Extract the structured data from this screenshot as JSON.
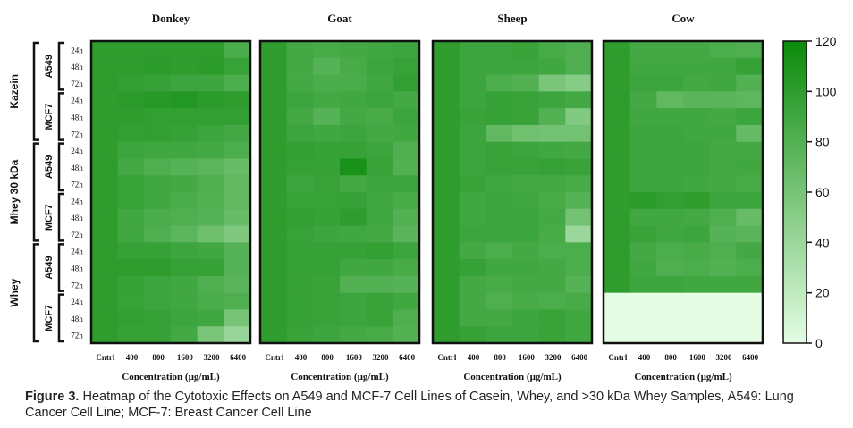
{
  "chart_data": {
    "type": "heatmap",
    "panels": [
      "Donkey",
      "Goat",
      "Sheep",
      "Cow"
    ],
    "columns": [
      "Cntrl",
      "400",
      "800",
      "1600",
      "3200",
      "6400"
    ],
    "xlabel": "Concentration (µg/mL)",
    "groups": [
      {
        "name": "Kazein",
        "cell_lines": [
          {
            "name": "A549",
            "times": [
              "24h",
              "48h",
              "72h"
            ]
          },
          {
            "name": "MCF7",
            "times": [
              "24h",
              "48h",
              "72h"
            ]
          }
        ]
      },
      {
        "name": "Mhey 30 kDa",
        "cell_lines": [
          {
            "name": "A549",
            "times": [
              "24h",
              "48h",
              "72h"
            ]
          },
          {
            "name": "MCF7",
            "times": [
              "24h",
              "48h",
              "72h"
            ]
          }
        ]
      },
      {
        "name": "Whey",
        "cell_lines": [
          {
            "name": "A549",
            "times": [
              "24h",
              "48h",
              "72h"
            ]
          },
          {
            "name": "MCF7",
            "times": [
              "24h",
              "48h",
              "72h"
            ]
          }
        ]
      }
    ],
    "colorbar": {
      "min": 0,
      "max": 120,
      "ticks": [
        0,
        20,
        40,
        60,
        80,
        100,
        120
      ],
      "low_color": "#e4fde4",
      "high_color": "#0a8a0a"
    },
    "values": {
      "Donkey": [
        [
          100,
          100,
          100,
          100,
          100,
          85
        ],
        [
          100,
          100,
          102,
          100,
          102,
          95
        ],
        [
          100,
          98,
          96,
          92,
          92,
          84
        ],
        [
          100,
          102,
          104,
          106,
          102,
          100
        ],
        [
          100,
          100,
          98,
          98,
          98,
          98
        ],
        [
          100,
          98,
          98,
          96,
          92,
          88
        ],
        [
          100,
          92,
          90,
          90,
          88,
          84
        ],
        [
          100,
          88,
          82,
          78,
          75,
          68
        ],
        [
          100,
          95,
          90,
          88,
          82,
          72
        ],
        [
          100,
          95,
          90,
          85,
          80,
          72
        ],
        [
          100,
          90,
          85,
          82,
          78,
          68
        ],
        [
          100,
          90,
          82,
          75,
          65,
          55
        ],
        [
          100,
          96,
          96,
          92,
          90,
          78
        ],
        [
          100,
          100,
          100,
          96,
          96,
          78
        ],
        [
          100,
          96,
          92,
          90,
          82,
          76
        ],
        [
          100,
          95,
          92,
          90,
          85,
          82
        ],
        [
          100,
          98,
          96,
          92,
          90,
          60
        ],
        [
          100,
          96,
          96,
          88,
          58,
          42
        ]
      ],
      "Goat": [
        [
          100,
          88,
          86,
          88,
          90,
          92
        ],
        [
          100,
          88,
          78,
          86,
          92,
          95
        ],
        [
          100,
          88,
          85,
          85,
          90,
          98
        ],
        [
          100,
          92,
          88,
          90,
          92,
          88
        ],
        [
          100,
          88,
          78,
          88,
          86,
          92
        ],
        [
          100,
          92,
          90,
          92,
          88,
          90
        ],
        [
          100,
          98,
          96,
          96,
          92,
          82
        ],
        [
          100,
          96,
          96,
          112,
          94,
          80
        ],
        [
          100,
          92,
          94,
          88,
          92,
          92
        ],
        [
          100,
          95,
          95,
          96,
          90,
          86
        ],
        [
          100,
          98,
          96,
          100,
          90,
          80
        ],
        [
          100,
          95,
          92,
          90,
          88,
          76
        ],
        [
          100,
          96,
          96,
          96,
          98,
          92
        ],
        [
          100,
          96,
          96,
          90,
          90,
          86
        ],
        [
          100,
          96,
          94,
          80,
          80,
          78
        ],
        [
          100,
          96,
          94,
          92,
          94,
          90
        ],
        [
          100,
          96,
          94,
          92,
          94,
          82
        ],
        [
          100,
          94,
          92,
          88,
          86,
          80
        ]
      ],
      "Sheep": [
        [
          100,
          92,
          92,
          94,
          86,
          82
        ],
        [
          100,
          92,
          92,
          92,
          90,
          82
        ],
        [
          100,
          92,
          84,
          80,
          58,
          52
        ],
        [
          100,
          92,
          96,
          94,
          92,
          88
        ],
        [
          100,
          94,
          96,
          94,
          80,
          54
        ],
        [
          100,
          92,
          72,
          64,
          62,
          62
        ],
        [
          100,
          92,
          94,
          92,
          90,
          88
        ],
        [
          100,
          92,
          94,
          94,
          96,
          94
        ],
        [
          100,
          94,
          90,
          88,
          88,
          86
        ],
        [
          100,
          90,
          92,
          90,
          86,
          78
        ],
        [
          100,
          90,
          92,
          92,
          88,
          62
        ],
        [
          100,
          92,
          92,
          92,
          86,
          40
        ],
        [
          100,
          88,
          84,
          88,
          84,
          84
        ],
        [
          100,
          96,
          90,
          90,
          88,
          84
        ],
        [
          100,
          88,
          86,
          88,
          88,
          78
        ],
        [
          100,
          88,
          82,
          86,
          84,
          86
        ],
        [
          100,
          88,
          88,
          92,
          94,
          90
        ],
        [
          100,
          96,
          92,
          92,
          94,
          90
        ]
      ],
      "Cow": [
        [
          100,
          88,
          88,
          88,
          84,
          82
        ],
        [
          100,
          90,
          90,
          90,
          90,
          96
        ],
        [
          100,
          92,
          92,
          88,
          90,
          80
        ],
        [
          100,
          88,
          72,
          76,
          76,
          74
        ],
        [
          100,
          90,
          90,
          90,
          88,
          92
        ],
        [
          100,
          92,
          92,
          90,
          90,
          70
        ],
        [
          100,
          92,
          92,
          92,
          88,
          88
        ],
        [
          100,
          92,
          92,
          92,
          88,
          90
        ],
        [
          100,
          92,
          92,
          90,
          88,
          86
        ],
        [
          100,
          102,
          98,
          100,
          92,
          92
        ],
        [
          100,
          90,
          90,
          88,
          82,
          68
        ],
        [
          100,
          94,
          90,
          92,
          78,
          76
        ],
        [
          100,
          88,
          84,
          86,
          82,
          88
        ],
        [
          100,
          90,
          82,
          84,
          80,
          84
        ],
        [
          100,
          92,
          92,
          90,
          90,
          90
        ],
        [
          0,
          0,
          0,
          0,
          0,
          0
        ],
        [
          0,
          0,
          0,
          0,
          0,
          0
        ],
        [
          0,
          0,
          0,
          0,
          0,
          0
        ]
      ]
    }
  },
  "caption": {
    "label": "Figure 3.",
    "text": "Heatmap of the Cytotoxic Effects on A549 and MCF-7 Cell Lines of Casein, Whey, and >30 kDa Whey Samples, A549: Lung Cancer Cell Line; MCF-7: Breast Cancer Cell Line"
  }
}
